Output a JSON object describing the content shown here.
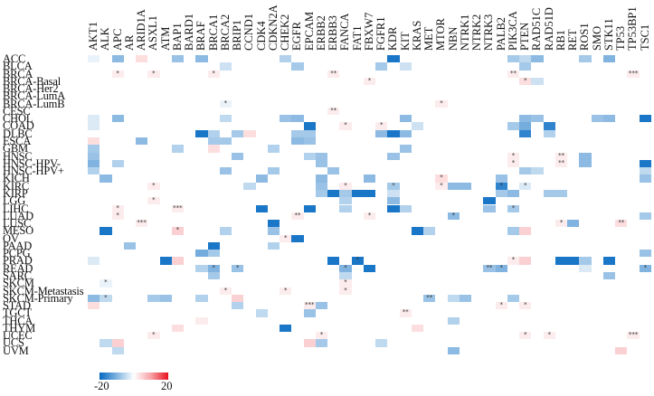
{
  "chart_data": {
    "type": "heatmap",
    "title": "",
    "xlabel": "",
    "ylabel": "",
    "columns": [
      "AKT1",
      "ALK",
      "APC",
      "AR",
      "ARID1A",
      "ASXL1",
      "ATM",
      "BAP1",
      "BARD1",
      "BRAF",
      "BRCA1",
      "BRCA2",
      "BRIP1",
      "CCND1",
      "CDK4",
      "CDKN2A",
      "CHEK2",
      "EGFR",
      "EPCAM",
      "ERBB2",
      "ERBB3",
      "FANCA",
      "FAT1",
      "FBXW7",
      "FGFR1",
      "KDR",
      "KIT",
      "KRAS",
      "MET",
      "MTOR",
      "NBN",
      "NTRK1",
      "NTRK2",
      "NTRK3",
      "PALB2",
      "PIK3CA",
      "PTEN",
      "RAD51C",
      "RAD51D",
      "RB1",
      "RET",
      "ROS1",
      "SMO",
      "STK11",
      "TP53",
      "TP53BP1",
      "TSC1"
    ],
    "rows": [
      "ACC",
      "BLCA",
      "BRCA",
      "BRCA-Basal",
      "BRCA-Her2",
      "BRCA-LumA",
      "BRCA-LumB",
      "CESC",
      "CHOL",
      "COAD",
      "DLBC",
      "ESCA",
      "GBM",
      "HNSC",
      "HNSC-HPV-",
      "HNSC-HPV+",
      "KICH",
      "KIRC",
      "KIRP",
      "LGG",
      "LIHC",
      "LUAD",
      "LUSC",
      "MESO",
      "OV",
      "PAAD",
      "PCPG",
      "PRAD",
      "READ",
      "SARC",
      "SKCM",
      "SKCM-Metastasis",
      "SKCM-Primary",
      "STAD",
      "TGCT",
      "THCA",
      "THYM",
      "UCEC",
      "UCS",
      "UVM"
    ],
    "colorbar": {
      "min": -20,
      "max": 20,
      "min_label": "-20",
      "max_label": "20",
      "low_color": "#0569c2",
      "mid_color": "#ffffff",
      "high_color": "#e8121f"
    },
    "cells": [
      {
        "r": "ACC",
        "c": "APC",
        "v": -8
      },
      {
        "r": "ACC",
        "c": "BAP1",
        "v": -7
      },
      {
        "r": "ACC",
        "c": "BRAF",
        "v": -8
      },
      {
        "r": "ACC",
        "c": "CHEK2",
        "v": -5
      },
      {
        "r": "ACC",
        "c": "ARID1A",
        "v": 2
      },
      {
        "r": "ACC",
        "c": "KDR",
        "v": -18
      },
      {
        "r": "ACC",
        "c": "AKT1",
        "v": -1
      },
      {
        "r": "ACC",
        "c": "PIK3CA",
        "v": -6
      },
      {
        "r": "ACC",
        "c": "PTEN",
        "v": -4
      },
      {
        "r": "ACC",
        "c": "RAD51C",
        "v": -8
      },
      {
        "r": "ACC",
        "c": "ROS1",
        "v": -6
      },
      {
        "r": "ACC",
        "c": "STK11",
        "v": -9
      },
      {
        "r": "BLCA",
        "c": "EGFR",
        "v": -6
      },
      {
        "r": "BLCA",
        "c": "BRCA2",
        "v": -3
      },
      {
        "r": "BLCA",
        "c": "FGFR1",
        "v": -6
      },
      {
        "r": "BLCA",
        "c": "KIT",
        "v": -3
      },
      {
        "r": "BLCA",
        "c": "PTEN",
        "v": -6
      },
      {
        "r": "BRCA",
        "c": "APC",
        "v": 1,
        "sig": "*"
      },
      {
        "r": "BRCA",
        "c": "ASXL1",
        "v": 1,
        "sig": "*"
      },
      {
        "r": "BRCA",
        "c": "BRCA1",
        "v": 1,
        "sig": "*"
      },
      {
        "r": "BRCA",
        "c": "ERBB3",
        "v": 1,
        "sig": "**"
      },
      {
        "r": "BRCA",
        "c": "PIK3CA",
        "v": 1,
        "sig": "**"
      },
      {
        "r": "BRCA",
        "c": "TP53BP1",
        "v": 1,
        "sig": "***"
      },
      {
        "r": "BRCA-Basal",
        "c": "FBXW7",
        "v": 1,
        "sig": "*"
      },
      {
        "r": "BRCA-Basal",
        "c": "PTEN",
        "v": 2,
        "sig": "*"
      },
      {
        "r": "BRCA-Basal",
        "c": "RAD51C",
        "v": -3
      },
      {
        "r": "BRCA-LumB",
        "c": "BRCA2",
        "v": -1,
        "sig": "*"
      },
      {
        "r": "BRCA-LumB",
        "c": "MTOR",
        "v": 1,
        "sig": "*"
      },
      {
        "r": "CESC",
        "c": "ERBB3",
        "v": 1,
        "sig": "**"
      },
      {
        "r": "CHOL",
        "c": "APC",
        "v": -8
      },
      {
        "r": "CHOL",
        "c": "BRCA2",
        "v": -4
      },
      {
        "r": "CHOL",
        "c": "CHEK2",
        "v": -7
      },
      {
        "r": "CHOL",
        "c": "AKT1",
        "v": -2
      },
      {
        "r": "CHOL",
        "c": "EGFR",
        "v": -8
      },
      {
        "r": "CHOL",
        "c": "KIT",
        "v": -8
      },
      {
        "r": "CHOL",
        "c": "RAD51C",
        "v": -7
      },
      {
        "r": "CHOL",
        "c": "PTEN",
        "v": -8
      },
      {
        "r": "CHOL",
        "c": "SMO",
        "v": -7
      },
      {
        "r": "CHOL",
        "c": "STK11",
        "v": -8
      },
      {
        "r": "CHOL",
        "c": "TSC1",
        "v": -18
      },
      {
        "r": "COAD",
        "c": "AKT1",
        "v": -2
      },
      {
        "r": "COAD",
        "c": "EPCAM",
        "v": -18
      },
      {
        "r": "COAD",
        "c": "FANCA",
        "v": 1,
        "sig": "*"
      },
      {
        "r": "COAD",
        "c": "FGFR1",
        "v": 1,
        "sig": "*"
      },
      {
        "r": "COAD",
        "c": "KRAS",
        "v": -3
      },
      {
        "r": "COAD",
        "c": "PIK3CA",
        "v": -6
      },
      {
        "r": "COAD",
        "c": "PTEN",
        "v": -10
      },
      {
        "r": "COAD",
        "c": "RAD51D",
        "v": -16
      },
      {
        "r": "DLBC",
        "c": "BRAF",
        "v": -18
      },
      {
        "r": "DLBC",
        "c": "BRCA1",
        "v": -5
      },
      {
        "r": "DLBC",
        "c": "BRIP1",
        "v": -6
      },
      {
        "r": "DLBC",
        "c": "CCND1",
        "v": 2
      },
      {
        "r": "DLBC",
        "c": "EGFR",
        "v": -6
      },
      {
        "r": "DLBC",
        "c": "EPCAM",
        "v": -6
      },
      {
        "r": "DLBC",
        "c": "FGFR1",
        "v": -8
      },
      {
        "r": "DLBC",
        "c": "KDR",
        "v": -18
      },
      {
        "r": "DLBC",
        "c": "KIT",
        "v": -8
      },
      {
        "r": "DLBC",
        "c": "PTEN",
        "v": -16
      },
      {
        "r": "DLBC",
        "c": "RAD51D",
        "v": -5
      },
      {
        "r": "ESCA",
        "c": "AKT1",
        "v": 2
      },
      {
        "r": "ESCA",
        "c": "ARID1A",
        "v": -8
      },
      {
        "r": "ESCA",
        "c": "BRCA1",
        "v": -6
      },
      {
        "r": "ESCA",
        "c": "BRCA2",
        "v": -6
      },
      {
        "r": "ESCA",
        "c": "EGFR",
        "v": -8
      },
      {
        "r": "ESCA",
        "c": "EPCAM",
        "v": -7
      },
      {
        "r": "GBM",
        "c": "AKT1",
        "v": -6
      },
      {
        "r": "GBM",
        "c": "BAP1",
        "v": -5
      },
      {
        "r": "GBM",
        "c": "BRCA1",
        "v": 2
      },
      {
        "r": "GBM",
        "c": "CDKN2A",
        "v": -5
      },
      {
        "r": "GBM",
        "c": "KIT",
        "v": -7
      },
      {
        "r": "HNSC",
        "c": "AKT1",
        "v": -7
      },
      {
        "r": "HNSC",
        "c": "BRIP1",
        "v": -7
      },
      {
        "r": "HNSC",
        "c": "EPCAM",
        "v": -5
      },
      {
        "r": "HNSC",
        "c": "ERBB2",
        "v": -7
      },
      {
        "r": "HNSC",
        "c": "PIK3CA",
        "v": 1,
        "sig": "*"
      },
      {
        "r": "HNSC",
        "c": "RB1",
        "v": 1,
        "sig": "**"
      },
      {
        "r": "HNSC",
        "c": "ROS1",
        "v": -8
      },
      {
        "r": "HNSC",
        "c": "KDR",
        "v": -7
      },
      {
        "r": "HNSC-HPV-",
        "c": "AKT1",
        "v": -9
      },
      {
        "r": "HNSC-HPV-",
        "c": "APC",
        "v": -5
      },
      {
        "r": "HNSC-HPV-",
        "c": "ERBB2",
        "v": -7
      },
      {
        "r": "HNSC-HPV-",
        "c": "PIK3CA",
        "v": 1,
        "sig": "*"
      },
      {
        "r": "HNSC-HPV-",
        "c": "RB1",
        "v": 1,
        "sig": "**"
      },
      {
        "r": "HNSC-HPV-",
        "c": "ROS1",
        "v": -8
      },
      {
        "r": "HNSC-HPV-",
        "c": "TSC1",
        "v": -18
      },
      {
        "r": "HNSC-HPV+",
        "c": "AKT1",
        "v": -5
      },
      {
        "r": "HNSC-HPV+",
        "c": "BRCA2",
        "v": -7
      },
      {
        "r": "HNSC-HPV+",
        "c": "CDKN2A",
        "v": -6
      },
      {
        "r": "HNSC-HPV+",
        "c": "ERBB3",
        "v": -7
      },
      {
        "r": "HNSC-HPV+",
        "c": "PTEN",
        "v": -6
      },
      {
        "r": "HNSC-HPV+",
        "c": "RAD51C",
        "v": -4
      },
      {
        "r": "HNSC-HPV+",
        "c": "TSC1",
        "v": -4
      },
      {
        "r": "KICH",
        "c": "ALK",
        "v": -8
      },
      {
        "r": "KICH",
        "c": "CDK4",
        "v": -8
      },
      {
        "r": "KICH",
        "c": "ERBB2",
        "v": -8
      },
      {
        "r": "KICH",
        "c": "FBXW7",
        "v": -8
      },
      {
        "r": "KICH",
        "c": "MTOR",
        "v": 2,
        "sig": "*"
      },
      {
        "r": "KICH",
        "c": "PALB2",
        "v": -7
      },
      {
        "r": "KICH",
        "c": "TSC1",
        "v": -7
      },
      {
        "r": "KIRC",
        "c": "ASXL1",
        "v": 1,
        "sig": "*"
      },
      {
        "r": "KIRC",
        "c": "CCND1",
        "v": -4
      },
      {
        "r": "KIRC",
        "c": "ERBB2",
        "v": -7
      },
      {
        "r": "KIRC",
        "c": "FANCA",
        "v": 1,
        "sig": "*"
      },
      {
        "r": "KIRC",
        "c": "KDR",
        "v": -6,
        "sig": "*"
      },
      {
        "r": "KIRC",
        "c": "MTOR",
        "v": 1,
        "sig": "*"
      },
      {
        "r": "KIRC",
        "c": "NBN",
        "v": -8
      },
      {
        "r": "KIRC",
        "c": "NTRK1",
        "v": -8
      },
      {
        "r": "KIRC",
        "c": "PALB2",
        "v": -16,
        "sig": "*"
      },
      {
        "r": "KIRC",
        "c": "PTEN",
        "v": -2,
        "sig": "*"
      },
      {
        "r": "KIRP",
        "c": "ERBB2",
        "v": -6
      },
      {
        "r": "KIRP",
        "c": "ERBB3",
        "v": -18
      },
      {
        "r": "KIRP",
        "c": "FANCA",
        "v": -6
      },
      {
        "r": "KIRP",
        "c": "FAT1",
        "v": -18
      },
      {
        "r": "KIRP",
        "c": "FBXW7",
        "v": -18
      },
      {
        "r": "KIRP",
        "c": "KDR",
        "v": -3
      },
      {
        "r": "KIRP",
        "c": "PALB2",
        "v": -6
      },
      {
        "r": "KIRP",
        "c": "PIK3CA",
        "v": -8
      },
      {
        "r": "KIRP",
        "c": "RAD51D",
        "v": -6
      },
      {
        "r": "KIRP",
        "c": "RB1",
        "v": -6
      },
      {
        "r": "LGG",
        "c": "ASXL1",
        "v": 1,
        "sig": "*"
      },
      {
        "r": "LGG",
        "c": "FANCA",
        "v": -5
      },
      {
        "r": "LGG",
        "c": "KDR",
        "v": -8
      },
      {
        "r": "LGG",
        "c": "NTRK3",
        "v": -18
      },
      {
        "r": "LIHC",
        "c": "APC",
        "v": 1,
        "sig": "*"
      },
      {
        "r": "LIHC",
        "c": "BAP1",
        "v": 1,
        "sig": "***"
      },
      {
        "r": "LIHC",
        "c": "CDK4",
        "v": -18
      },
      {
        "r": "LIHC",
        "c": "EPCAM",
        "v": -18
      },
      {
        "r": "LIHC",
        "c": "FANCA",
        "v": -5
      },
      {
        "r": "LIHC",
        "c": "KDR",
        "v": -18
      },
      {
        "r": "LIHC",
        "c": "KIT",
        "v": -5
      },
      {
        "r": "LIHC",
        "c": "NTRK3",
        "v": -7
      },
      {
        "r": "LIHC",
        "c": "PIK3CA",
        "v": -6,
        "sig": "*"
      },
      {
        "r": "LUAD",
        "c": "APC",
        "v": 1,
        "sig": "*"
      },
      {
        "r": "LUAD",
        "c": "EGFR",
        "v": 1,
        "sig": "**"
      },
      {
        "r": "LUAD",
        "c": "FBXW7",
        "v": 1,
        "sig": "*"
      },
      {
        "r": "LUAD",
        "c": "NBN",
        "v": -8,
        "sig": "*"
      },
      {
        "r": "LUAD",
        "c": "TSC1",
        "v": -6
      },
      {
        "r": "LUSC",
        "c": "ARID1A",
        "v": 1,
        "sig": "***"
      },
      {
        "r": "LUSC",
        "c": "CDKN2A",
        "v": -18
      },
      {
        "r": "LUSC",
        "c": "RB1",
        "v": 1,
        "sig": "*"
      },
      {
        "r": "LUSC",
        "c": "RET",
        "v": -9
      },
      {
        "r": "LUSC",
        "c": "TP53",
        "v": 2,
        "sig": "**"
      },
      {
        "r": "MESO",
        "c": "ALK",
        "v": -18
      },
      {
        "r": "MESO",
        "c": "BAP1",
        "v": 3,
        "sig": "*"
      },
      {
        "r": "MESO",
        "c": "BRCA2",
        "v": -5
      },
      {
        "r": "MESO",
        "c": "CDKN2A",
        "v": -7
      },
      {
        "r": "MESO",
        "c": "KRAS",
        "v": -18
      },
      {
        "r": "MESO",
        "c": "MET",
        "v": -5
      },
      {
        "r": "MESO",
        "c": "PIK3CA",
        "v": -6
      },
      {
        "r": "MESO",
        "c": "PTEN",
        "v": 3
      },
      {
        "r": "OV",
        "c": "CHEK2",
        "v": 1,
        "sig": "*"
      },
      {
        "r": "OV",
        "c": "EGFR",
        "v": -18
      },
      {
        "r": "PAAD",
        "c": "BRCA1",
        "v": -18
      },
      {
        "r": "PAAD",
        "c": "CDKN2A",
        "v": -5
      },
      {
        "r": "PAAD",
        "c": "AR",
        "v": -7
      },
      {
        "r": "PCPG",
        "c": "BRAF",
        "v": -10
      },
      {
        "r": "PCPG",
        "c": "BRCA1",
        "v": -6
      },
      {
        "r": "PCPG",
        "c": "TSC1",
        "v": -7
      },
      {
        "r": "PRAD",
        "c": "ATM",
        "v": -18
      },
      {
        "r": "PRAD",
        "c": "BAP1",
        "v": 3
      },
      {
        "r": "PRAD",
        "c": "ERBB3",
        "v": -18
      },
      {
        "r": "PRAD",
        "c": "FAT1",
        "v": -18,
        "sig": "*"
      },
      {
        "r": "PRAD",
        "c": "PIK3CA",
        "v": 1,
        "sig": "*"
      },
      {
        "r": "PRAD",
        "c": "PTEN",
        "v": 3
      },
      {
        "r": "PRAD",
        "c": "RB1",
        "v": -18
      },
      {
        "r": "PRAD",
        "c": "RET",
        "v": -18
      },
      {
        "r": "PRAD",
        "c": "ROS1",
        "v": -6
      },
      {
        "r": "PRAD",
        "c": "STK11",
        "v": -18
      },
      {
        "r": "PRAD",
        "c": "AKT1",
        "v": -2
      },
      {
        "r": "READ",
        "c": "BRAF",
        "v": -5
      },
      {
        "r": "READ",
        "c": "BRCA1",
        "v": -9,
        "sig": "*"
      },
      {
        "r": "READ",
        "c": "BRIP1",
        "v": -7,
        "sig": "*"
      },
      {
        "r": "READ",
        "c": "FANCA",
        "v": -9,
        "sig": "*"
      },
      {
        "r": "READ",
        "c": "FBXW7",
        "v": -18
      },
      {
        "r": "READ",
        "c": "NTRK3",
        "v": -7,
        "sig": "**"
      },
      {
        "r": "READ",
        "c": "PALB2",
        "v": -9,
        "sig": "*"
      },
      {
        "r": "READ",
        "c": "ROS1",
        "v": -2
      },
      {
        "r": "READ",
        "c": "TSC1",
        "v": -9,
        "sig": "*"
      },
      {
        "r": "SARC",
        "c": "BRCA1",
        "v": -6
      },
      {
        "r": "SARC",
        "c": "FANCA",
        "v": -4
      },
      {
        "r": "SARC",
        "c": "STK11",
        "v": -7
      },
      {
        "r": "SKCM",
        "c": "ALK",
        "v": -1,
        "sig": "*"
      },
      {
        "r": "SKCM",
        "c": "FANCA",
        "v": 1,
        "sig": "*"
      },
      {
        "r": "SKCM-Metastasis",
        "c": "BRCA2",
        "v": 1,
        "sig": "*"
      },
      {
        "r": "SKCM-Metastasis",
        "c": "CHEK2",
        "v": 1,
        "sig": "*"
      },
      {
        "r": "SKCM-Metastasis",
        "c": "FANCA",
        "v": 1,
        "sig": "*"
      },
      {
        "r": "SKCM-Primary",
        "c": "AKT1",
        "v": -8
      },
      {
        "r": "SKCM-Primary",
        "c": "ALK",
        "v": -4,
        "sig": "*"
      },
      {
        "r": "SKCM-Primary",
        "c": "ASXL1",
        "v": -6
      },
      {
        "r": "SKCM-Primary",
        "c": "ATM",
        "v": -7
      },
      {
        "r": "SKCM-Primary",
        "c": "BRAF",
        "v": -5
      },
      {
        "r": "SKCM-Primary",
        "c": "BRIP1",
        "v": 3
      },
      {
        "r": "SKCM-Primary",
        "c": "MET",
        "v": -7,
        "sig": "**"
      },
      {
        "r": "SKCM-Primary",
        "c": "NBN",
        "v": -4
      },
      {
        "r": "SKCM-Primary",
        "c": "NTRK1",
        "v": -7
      },
      {
        "r": "SKCM-Primary",
        "c": "PIK3CA",
        "v": -6
      },
      {
        "r": "STAD",
        "c": "BRIP1",
        "v": -5
      },
      {
        "r": "STAD",
        "c": "EPCAM",
        "v": 1,
        "sig": "***"
      },
      {
        "r": "STAD",
        "c": "ERBB2",
        "v": -7
      },
      {
        "r": "STAD",
        "c": "PALB2",
        "v": 1,
        "sig": "*"
      },
      {
        "r": "STAD",
        "c": "PTEN",
        "v": 1,
        "sig": "*"
      },
      {
        "r": "STAD",
        "c": "AKT1",
        "v": 2
      },
      {
        "r": "TGCT",
        "c": "CDK4",
        "v": -4
      },
      {
        "r": "TGCT",
        "c": "EPCAM",
        "v": -7
      },
      {
        "r": "TGCT",
        "c": "KIT",
        "v": 1,
        "sig": "**"
      },
      {
        "r": "THCA",
        "c": "BRAF",
        "v": 1
      },
      {
        "r": "THCA",
        "c": "NBN",
        "v": -5
      },
      {
        "r": "THYM",
        "c": "CHEK2",
        "v": -18
      },
      {
        "r": "THYM",
        "c": "BAP1",
        "v": 2
      },
      {
        "r": "THYM",
        "c": "KRAS",
        "v": 2
      },
      {
        "r": "UCEC",
        "c": "ASXL1",
        "v": 1,
        "sig": "*"
      },
      {
        "r": "UCEC",
        "c": "ERBB2",
        "v": 1,
        "sig": "*"
      },
      {
        "r": "UCEC",
        "c": "PTEN",
        "v": 1,
        "sig": "*"
      },
      {
        "r": "UCEC",
        "c": "RAD51D",
        "v": 1,
        "sig": "*"
      },
      {
        "r": "UCEC",
        "c": "TP53BP1",
        "v": 1,
        "sig": "***"
      },
      {
        "r": "UCS",
        "c": "ALK",
        "v": -4
      },
      {
        "r": "UCS",
        "c": "APC",
        "v": 3
      },
      {
        "r": "UCS",
        "c": "EPCAM",
        "v": 3
      },
      {
        "r": "UCS",
        "c": "ERBB2",
        "v": -6
      },
      {
        "r": "UCS",
        "c": "FGFR1",
        "v": -4
      },
      {
        "r": "UVM",
        "c": "APC",
        "v": -4
      },
      {
        "r": "UVM",
        "c": "NBN",
        "v": -8
      },
      {
        "r": "UVM",
        "c": "TP53",
        "v": 3
      }
    ]
  }
}
